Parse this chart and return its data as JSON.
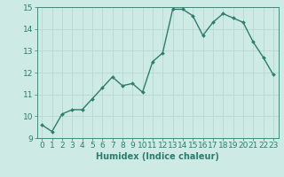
{
  "x": [
    0,
    1,
    2,
    3,
    4,
    5,
    6,
    7,
    8,
    9,
    10,
    11,
    12,
    13,
    14,
    15,
    16,
    17,
    18,
    19,
    20,
    21,
    22,
    23
  ],
  "y": [
    9.6,
    9.3,
    10.1,
    10.3,
    10.3,
    10.8,
    11.3,
    11.8,
    11.4,
    11.5,
    11.1,
    12.5,
    12.9,
    14.9,
    14.9,
    14.6,
    13.7,
    14.3,
    14.7,
    14.5,
    14.3,
    13.4,
    12.7,
    11.9
  ],
  "line_color": "#2d7d6e",
  "marker": "D",
  "marker_size": 2.0,
  "linewidth": 1.0,
  "bg_color": "#cdeae4",
  "grid_color": "#b8d8d2",
  "xlabel": "Humidex (Indice chaleur)",
  "ylim": [
    9,
    15
  ],
  "xlim": [
    -0.5,
    23.5
  ],
  "yticks": [
    9,
    10,
    11,
    12,
    13,
    14,
    15
  ],
  "xticks": [
    0,
    1,
    2,
    3,
    4,
    5,
    6,
    7,
    8,
    9,
    10,
    11,
    12,
    13,
    14,
    15,
    16,
    17,
    18,
    19,
    20,
    21,
    22,
    23
  ],
  "tick_color": "#2d7d6e",
  "label_color": "#2d7d6e",
  "xlabel_fontsize": 7,
  "tick_fontsize": 6.5
}
